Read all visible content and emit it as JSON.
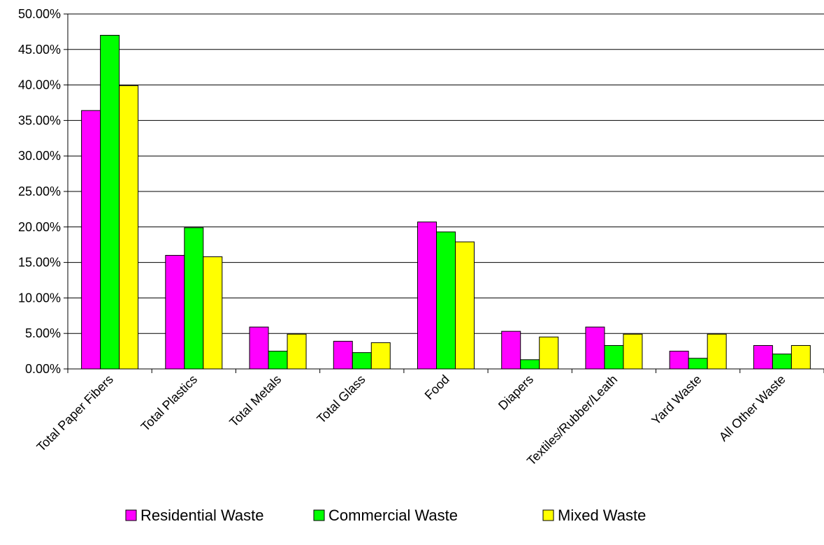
{
  "chart_data": {
    "type": "bar",
    "categories": [
      "Total Paper Fibers",
      "Total Plastics",
      "Total Metals",
      "Total Glass",
      "Food",
      "Diapers",
      "Textiles/Rubber/Leath",
      "Yard Waste",
      "All Other Waste"
    ],
    "series": [
      {
        "name": "Residential Waste",
        "color": "#ff00ff",
        "values": [
          36.4,
          16.0,
          5.9,
          3.9,
          20.7,
          5.3,
          5.9,
          2.5,
          3.3
        ]
      },
      {
        "name": "Commercial Waste",
        "color": "#00ff00",
        "values": [
          47.0,
          19.9,
          2.5,
          2.3,
          19.3,
          1.3,
          3.3,
          1.5,
          2.1
        ]
      },
      {
        "name": "Mixed Waste",
        "color": "#ffff00",
        "values": [
          39.9,
          15.8,
          4.9,
          3.7,
          17.9,
          4.5,
          4.9,
          4.9,
          3.3
        ]
      }
    ],
    "ylim": [
      0,
      50
    ],
    "yticks": [
      "0.00%",
      "5.00%",
      "10.00%",
      "15.00%",
      "20.00%",
      "25.00%",
      "30.00%",
      "35.00%",
      "40.00%",
      "45.00%",
      "50.00%"
    ],
    "grid": true,
    "legend_position": "bottom"
  }
}
